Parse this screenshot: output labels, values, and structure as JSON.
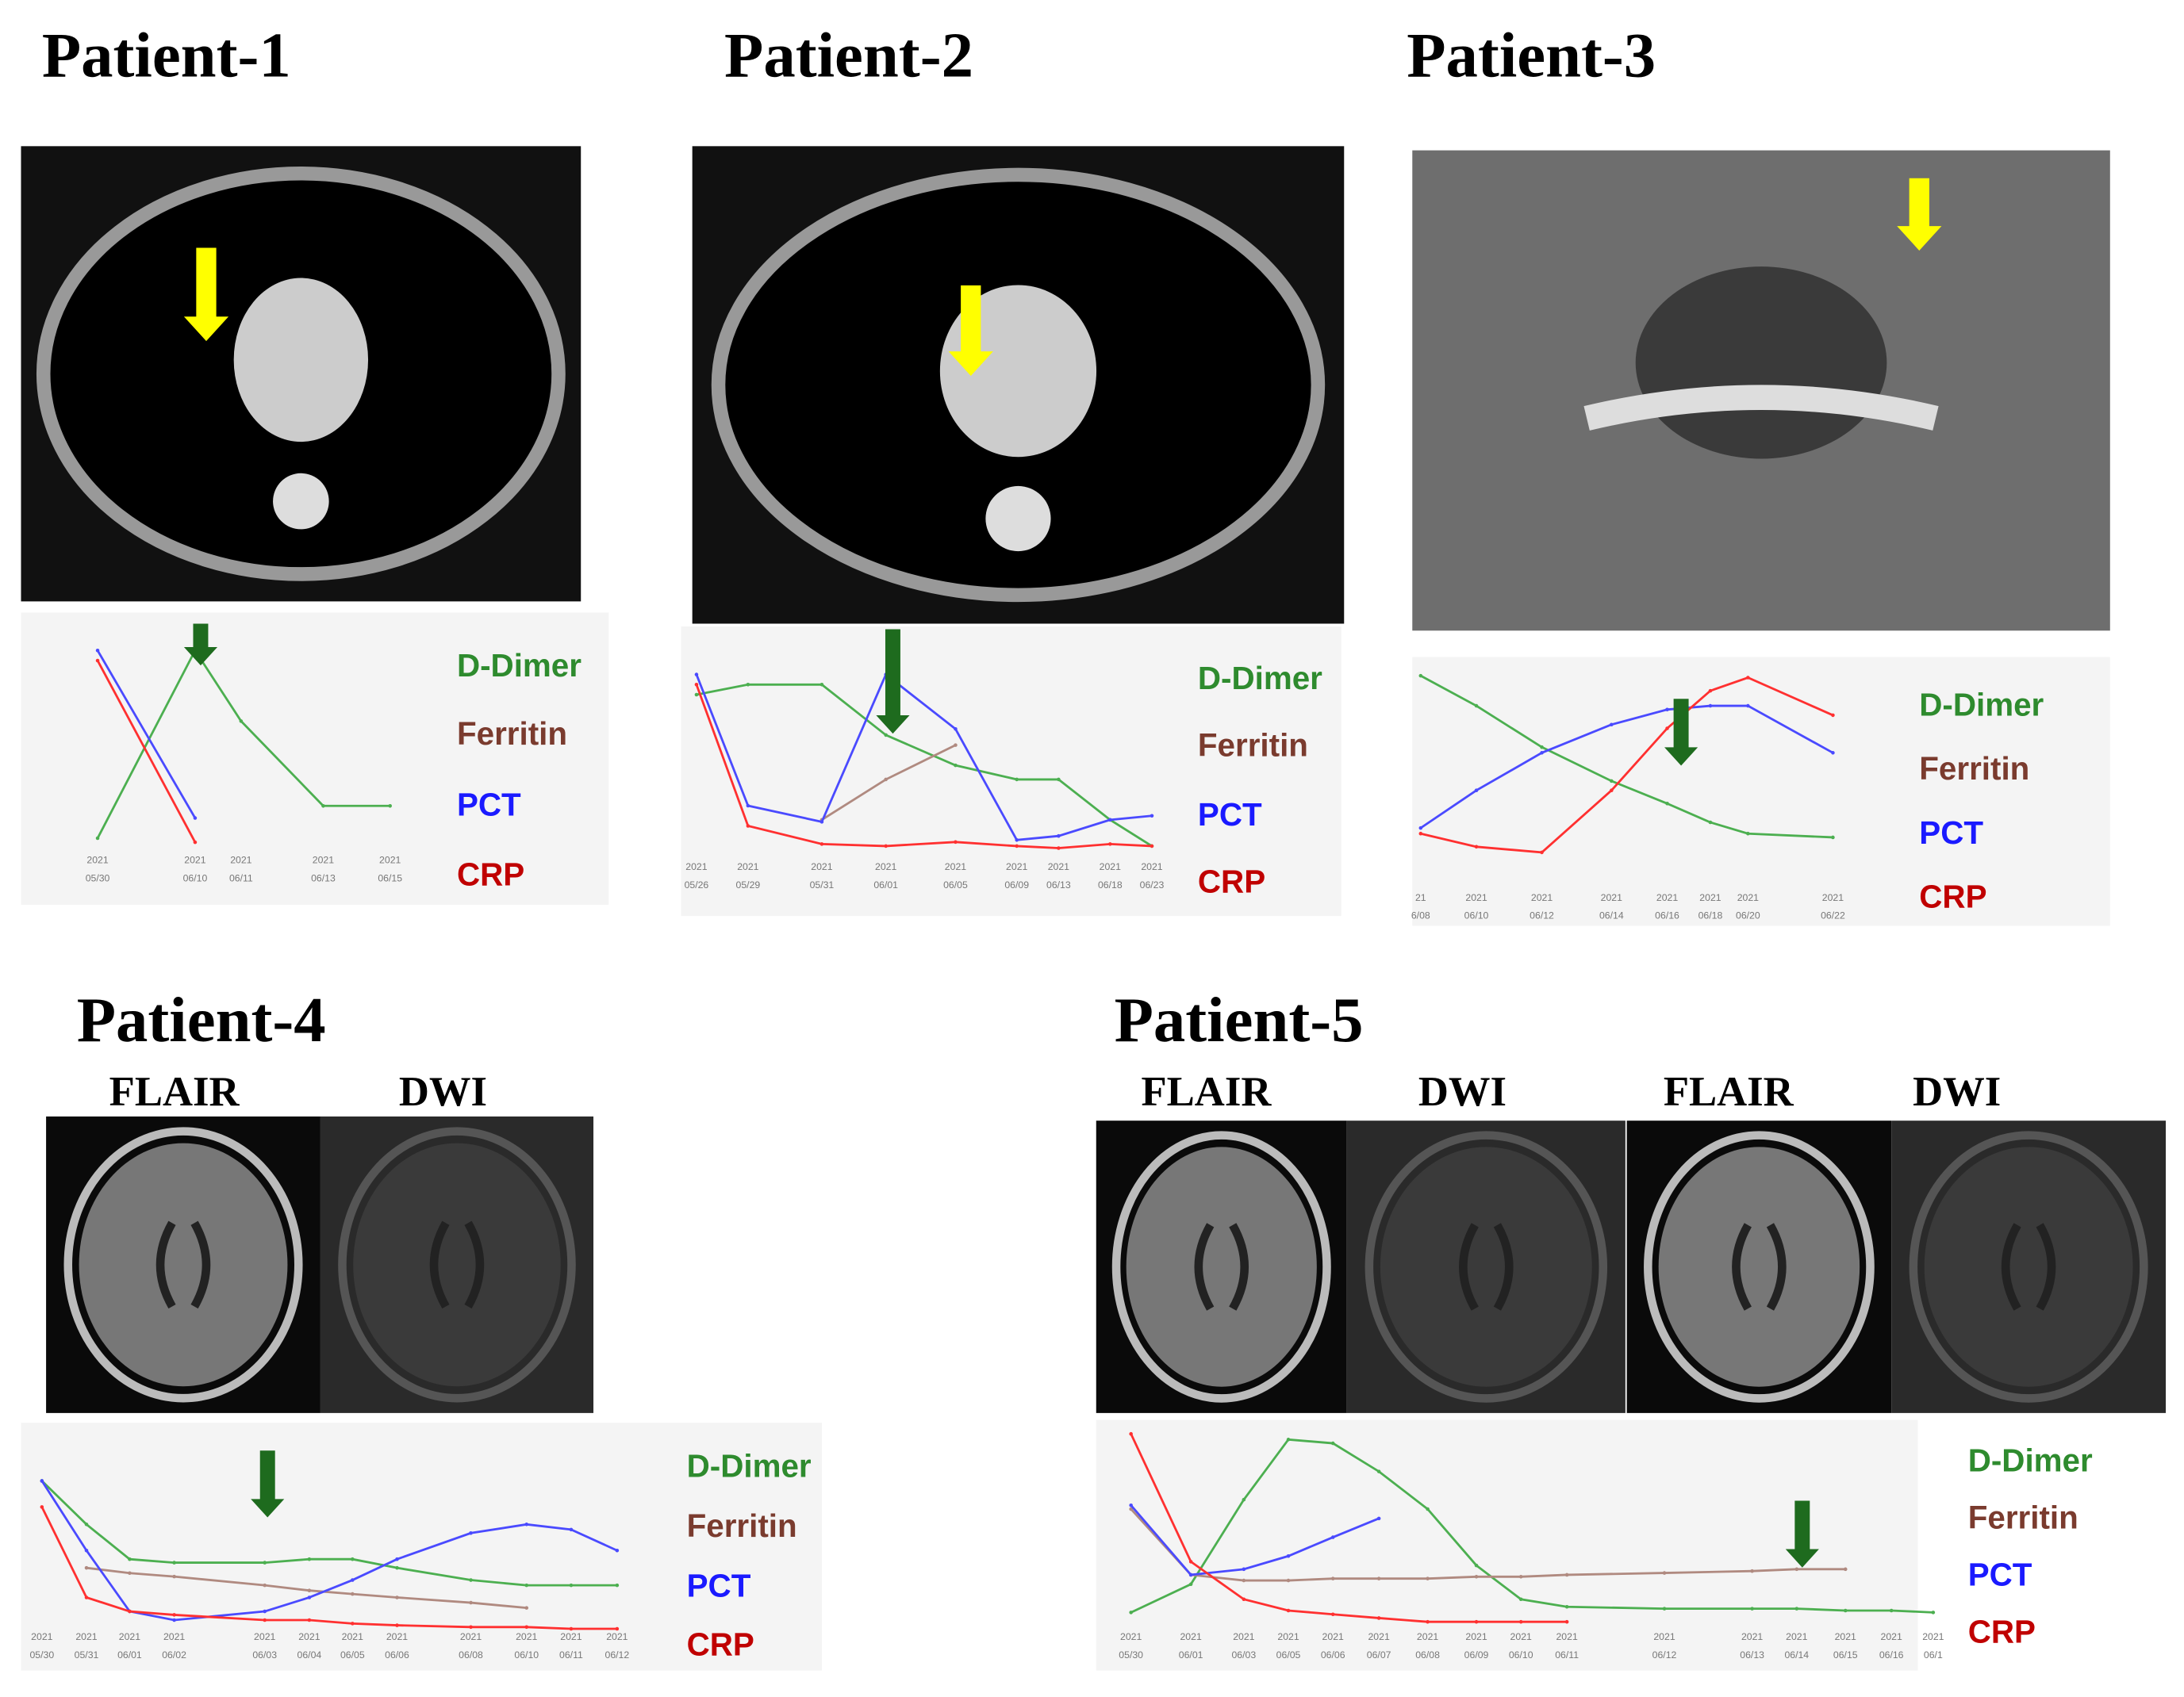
{
  "panels": [
    {
      "title": "Patient-1",
      "chart": {
        "type": "line",
        "ticks": [
          {
            "year": "2021",
            "date": "05/30"
          },
          {
            "year": "2021",
            "date": "06/10"
          },
          {
            "year": "2021",
            "date": "06/11"
          },
          {
            "year": "2021",
            "date": "06/13"
          },
          {
            "year": "2021",
            "date": "06/15"
          }
        ],
        "series": [
          {
            "name": "D-Dimer",
            "color": "#2e8b2e",
            "values": [
              2,
              95,
              60,
              18,
              18
            ]
          },
          {
            "name": "Ferritin",
            "color": "#7a3b2e",
            "values": [
              null,
              null,
              null,
              null,
              null
            ]
          },
          {
            "name": "PCT",
            "color": "#1a1aff",
            "values": [
              95,
              12,
              null,
              null,
              null
            ]
          },
          {
            "name": "CRP",
            "color": "#c00000",
            "values": [
              90,
              0,
              null,
              null,
              null
            ]
          }
        ]
      }
    },
    {
      "title": "Patient-2",
      "chart": {
        "type": "line",
        "ticks": [
          {
            "year": "2021",
            "date": "05/26"
          },
          {
            "year": "2021",
            "date": "05/29"
          },
          {
            "year": "2021",
            "date": "05/31"
          },
          {
            "year": "2021",
            "date": "06/01"
          },
          {
            "year": "2021",
            "date": "06/05"
          },
          {
            "year": "2021",
            "date": "06/09"
          },
          {
            "year": "2021",
            "date": "06/13"
          },
          {
            "year": "2021",
            "date": "06/18"
          },
          {
            "year": "2021",
            "date": "06/23"
          }
        ],
        "series": [
          {
            "name": "D-Dimer",
            "color": "#2e8b2e",
            "values": [
              80,
              85,
              85,
              60,
              45,
              38,
              38,
              18,
              5
            ]
          },
          {
            "name": "Ferritin",
            "color": "#7a3b2e",
            "values": [
              null,
              null,
              18,
              38,
              55,
              null,
              null,
              null,
              null
            ]
          },
          {
            "name": "PCT",
            "color": "#1a1aff",
            "values": [
              90,
              25,
              17,
              90,
              63,
              8,
              10,
              18,
              20
            ]
          },
          {
            "name": "CRP",
            "color": "#c00000",
            "values": [
              85,
              15,
              6,
              5,
              7,
              5,
              4,
              6,
              5
            ]
          }
        ]
      }
    },
    {
      "title": "Patient-3",
      "chart": {
        "type": "line",
        "ticks": [
          {
            "year": "21",
            "date": "6/08"
          },
          {
            "year": "2021",
            "date": "06/10"
          },
          {
            "year": "2021",
            "date": "06/12"
          },
          {
            "year": "2021",
            "date": "06/14"
          },
          {
            "year": "2021",
            "date": "06/16"
          },
          {
            "year": "2021",
            "date": "06/18"
          },
          {
            "year": "2021",
            "date": "06/20"
          },
          {
            "year": "2021",
            "date": "06/22"
          }
        ],
        "series": [
          {
            "name": "D-Dimer",
            "color": "#2e8b2e",
            "values": [
              96,
              80,
              58,
              40,
              28,
              18,
              12,
              10
            ]
          },
          {
            "name": "Ferritin",
            "color": "#7a3b2e",
            "values": [
              null,
              null,
              null,
              null,
              null,
              null,
              null,
              null
            ]
          },
          {
            "name": "PCT",
            "color": "#1a1aff",
            "values": [
              15,
              35,
              55,
              70,
              78,
              80,
              80,
              55
            ]
          },
          {
            "name": "CRP",
            "color": "#c00000",
            "values": [
              12,
              5,
              2,
              35,
              68,
              88,
              95,
              75
            ]
          }
        ]
      }
    },
    {
      "title": "Patient-4",
      "image_labels": [
        "FLAIR",
        "DWI"
      ],
      "chart": {
        "type": "line",
        "ticks": [
          {
            "year": "2021",
            "date": "05/30"
          },
          {
            "year": "2021",
            "date": "05/31"
          },
          {
            "year": "2021",
            "date": "06/01"
          },
          {
            "year": "2021",
            "date": "06/02"
          },
          {
            "year": "2021",
            "date": "06/03"
          },
          {
            "year": "2021",
            "date": "06/04"
          },
          {
            "year": "2021",
            "date": "06/05"
          },
          {
            "year": "2021",
            "date": "06/06"
          },
          {
            "year": "2021",
            "date": "06/08"
          },
          {
            "year": "2021",
            "date": "06/10"
          },
          {
            "year": "2021",
            "date": "06/11"
          },
          {
            "year": "2021",
            "date": "06/12"
          }
        ],
        "series": [
          {
            "name": "D-Dimer",
            "color": "#2e8b2e",
            "values": [
              85,
              60,
              40,
              38,
              38,
              40,
              40,
              35,
              28,
              25,
              25,
              25
            ]
          },
          {
            "name": "Ferritin",
            "color": "#7a3b2e",
            "values": [
              null,
              35,
              32,
              30,
              25,
              22,
              20,
              18,
              15,
              12,
              null,
              null
            ]
          },
          {
            "name": "PCT",
            "color": "#1a1aff",
            "values": [
              85,
              45,
              10,
              5,
              10,
              18,
              28,
              40,
              55,
              60,
              57,
              45
            ]
          },
          {
            "name": "CRP",
            "color": "#c00000",
            "values": [
              70,
              18,
              10,
              8,
              5,
              5,
              3,
              2,
              1,
              1,
              0,
              0
            ]
          }
        ]
      }
    },
    {
      "title": "Patient-5",
      "image_labels": [
        "FLAIR",
        "DWI",
        "FLAIR",
        "DWI"
      ],
      "chart": {
        "type": "line",
        "ticks": [
          {
            "year": "2021",
            "date": "05/30"
          },
          {
            "year": "2021",
            "date": "06/01"
          },
          {
            "year": "2021",
            "date": "06/03"
          },
          {
            "year": "2021",
            "date": "06/05"
          },
          {
            "year": "2021",
            "date": "06/06"
          },
          {
            "year": "2021",
            "date": "06/07"
          },
          {
            "year": "2021",
            "date": "06/08"
          },
          {
            "year": "2021",
            "date": "06/09"
          },
          {
            "year": "2021",
            "date": "06/10"
          },
          {
            "year": "2021",
            "date": "06/11"
          },
          {
            "year": "2021",
            "date": "06/12"
          },
          {
            "year": "2021",
            "date": "06/13"
          },
          {
            "year": "2021",
            "date": "06/14"
          },
          {
            "year": "2021",
            "date": "06/15"
          },
          {
            "year": "2021",
            "date": "06/16"
          },
          {
            "year": "2021",
            "date": "06/1"
          }
        ],
        "series": [
          {
            "name": "D-Dimer",
            "color": "#2e8b2e",
            "values": [
              5,
              20,
              65,
              97,
              95,
              80,
              60,
              30,
              12,
              8,
              7,
              7,
              7,
              6,
              6,
              5
            ]
          },
          {
            "name": "Ferritin",
            "color": "#7a3b2e",
            "values": [
              60,
              25,
              22,
              22,
              23,
              23,
              23,
              24,
              24,
              25,
              26,
              27,
              28,
              28,
              null,
              null
            ]
          },
          {
            "name": "PCT",
            "color": "#1a1aff",
            "values": [
              62,
              25,
              28,
              35,
              45,
              55,
              null,
              null,
              null,
              null,
              null,
              null,
              null,
              null,
              null,
              null
            ]
          },
          {
            "name": "CRP",
            "color": "#c00000",
            "values": [
              100,
              32,
              12,
              6,
              4,
              2,
              0,
              0,
              0,
              0,
              null,
              null,
              null,
              null,
              null,
              null
            ]
          }
        ]
      }
    }
  ]
}
